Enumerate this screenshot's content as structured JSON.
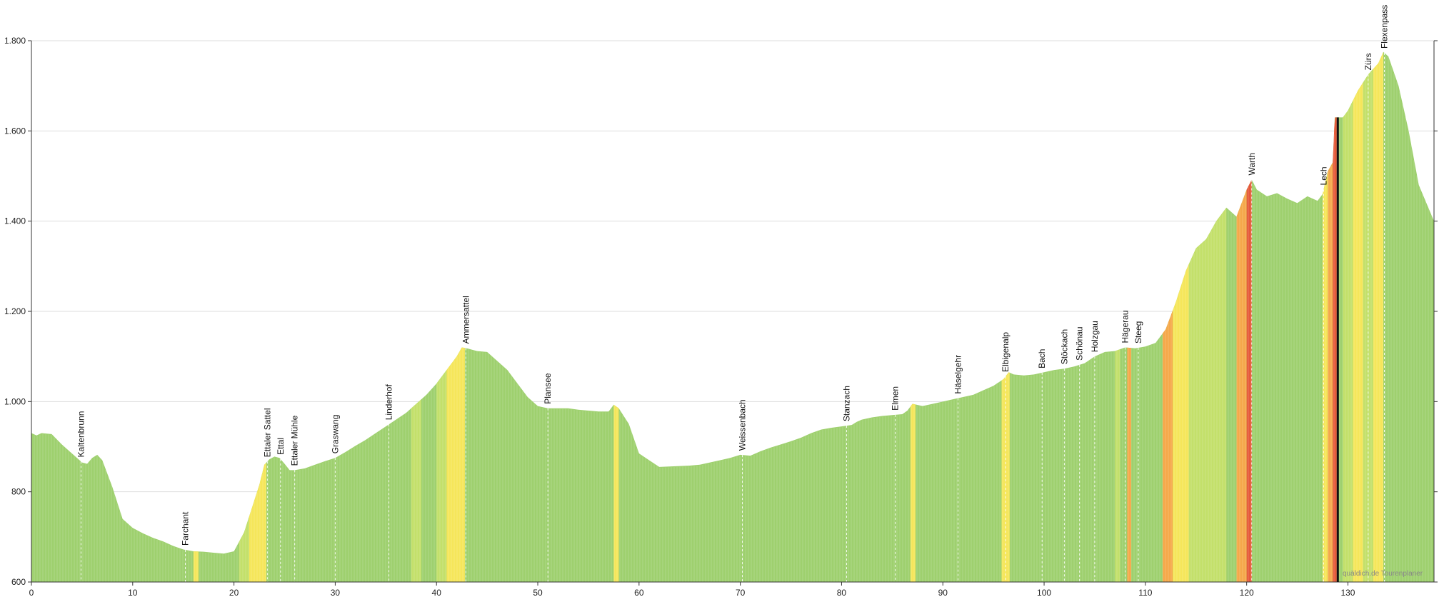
{
  "colors": {
    "flat": "#9ed06e",
    "light": "#c3e06a",
    "yellow": "#f5e65a",
    "orange": "#f5a84a",
    "red": "#e55a3a",
    "grid": "#dddddd",
    "axis": "#333333",
    "marker": "#111111"
  },
  "watermark": "quäldich.de Tourenplaner",
  "chart_data": {
    "type": "area",
    "title": "",
    "xlabel": "",
    "ylabel": "",
    "xlim": [
      0,
      138.5
    ],
    "ylim": [
      600,
      1800
    ],
    "x_ticks": [
      0,
      10,
      20,
      30,
      40,
      50,
      60,
      70,
      80,
      90,
      100,
      110,
      120,
      130
    ],
    "x_tick_labels": [
      "0",
      "10",
      "20",
      "30",
      "40",
      "50",
      "60",
      "70",
      "80",
      "90",
      "100",
      "110",
      "120",
      "130"
    ],
    "y_ticks": [
      600,
      800,
      1000,
      1200,
      1400,
      1600,
      1800
    ],
    "y_tick_labels": [
      "600",
      "800",
      "1.000",
      "1.200",
      "1.400",
      "1.600",
      "1.800"
    ],
    "grid": true,
    "profile": {
      "x": [
        0,
        0.5,
        1,
        2,
        3,
        4,
        5,
        5.5,
        6,
        6.5,
        7,
        8,
        9,
        10,
        11,
        12,
        13,
        14,
        15,
        16,
        17,
        18,
        19,
        20,
        21,
        22,
        22.5,
        23,
        23.5,
        24,
        24.5,
        25,
        25.5,
        26,
        27,
        28,
        29,
        30,
        31,
        32,
        33,
        34,
        35,
        36,
        37,
        38,
        39,
        40,
        41,
        42,
        42.5,
        43,
        44,
        45,
        46,
        47,
        48,
        49,
        50,
        51,
        52,
        53,
        54,
        55,
        56,
        57,
        57.5,
        58,
        59,
        60,
        61,
        62,
        63,
        64,
        65,
        66,
        67,
        68,
        69,
        70,
        71,
        72,
        73,
        74,
        75,
        76,
        77,
        78,
        79,
        80,
        81,
        81.5,
        82,
        83,
        84,
        85,
        86,
        86.5,
        87,
        88,
        89,
        90,
        91,
        92,
        93,
        94,
        95,
        96,
        96.5,
        97,
        98,
        99,
        100,
        101,
        102,
        103,
        104,
        105,
        106,
        107,
        108,
        109,
        110,
        111,
        112,
        113,
        114,
        115,
        116,
        117,
        118,
        119,
        120,
        120.5,
        121,
        122,
        123,
        124,
        125,
        126,
        127,
        127.5,
        128,
        128.5,
        128.7,
        129,
        129.5,
        130,
        131,
        132,
        133,
        133.5,
        134,
        135,
        136,
        137,
        138.5
      ],
      "y": [
        930,
        925,
        930,
        928,
        905,
        885,
        865,
        862,
        875,
        882,
        870,
        810,
        740,
        720,
        708,
        698,
        690,
        680,
        672,
        668,
        667,
        665,
        663,
        668,
        710,
        780,
        815,
        860,
        872,
        878,
        875,
        862,
        848,
        848,
        852,
        860,
        868,
        875,
        888,
        902,
        915,
        930,
        945,
        960,
        975,
        995,
        1015,
        1040,
        1070,
        1100,
        1120,
        1118,
        1112,
        1110,
        1090,
        1070,
        1040,
        1010,
        990,
        985,
        985,
        985,
        982,
        980,
        978,
        978,
        993,
        985,
        950,
        885,
        870,
        855,
        856,
        857,
        858,
        860,
        865,
        870,
        875,
        882,
        880,
        890,
        898,
        905,
        912,
        920,
        930,
        938,
        942,
        945,
        948,
        955,
        960,
        965,
        968,
        970,
        972,
        980,
        995,
        990,
        995,
        1000,
        1005,
        1010,
        1015,
        1025,
        1035,
        1050,
        1065,
        1060,
        1058,
        1060,
        1065,
        1070,
        1073,
        1078,
        1085,
        1100,
        1110,
        1112,
        1120,
        1118,
        1122,
        1130,
        1160,
        1220,
        1290,
        1340,
        1360,
        1400,
        1430,
        1410,
        1470,
        1492,
        1470,
        1455,
        1462,
        1450,
        1440,
        1455,
        1445,
        1460,
        1510,
        1530,
        1630,
        1630,
        1630,
        1645,
        1690,
        1725,
        1750,
        1775,
        1765,
        1700,
        1600,
        1480,
        1400
      ]
    },
    "steepness_segments": [
      {
        "from": 16.0,
        "to": 16.5,
        "level": "yellow"
      },
      {
        "from": 20.5,
        "to": 21.5,
        "level": "light"
      },
      {
        "from": 21.5,
        "to": 23.2,
        "level": "yellow"
      },
      {
        "from": 37.5,
        "to": 38.5,
        "level": "light"
      },
      {
        "from": 40.0,
        "to": 41.0,
        "level": "light"
      },
      {
        "from": 41.0,
        "to": 42.8,
        "level": "yellow"
      },
      {
        "from": 57.5,
        "to": 58.0,
        "level": "yellow"
      },
      {
        "from": 86.8,
        "to": 87.3,
        "level": "yellow"
      },
      {
        "from": 95.8,
        "to": 96.6,
        "level": "yellow"
      },
      {
        "from": 107.0,
        "to": 107.5,
        "level": "light"
      },
      {
        "from": 108.2,
        "to": 108.6,
        "level": "orange"
      },
      {
        "from": 111.7,
        "to": 112.7,
        "level": "orange"
      },
      {
        "from": 112.7,
        "to": 114.3,
        "level": "yellow"
      },
      {
        "from": 114.3,
        "to": 116.0,
        "level": "light"
      },
      {
        "from": 116.0,
        "to": 118.0,
        "level": "light"
      },
      {
        "from": 119.0,
        "to": 120.0,
        "level": "orange"
      },
      {
        "from": 120.0,
        "to": 120.5,
        "level": "red"
      },
      {
        "from": 127.5,
        "to": 128.0,
        "level": "yellow"
      },
      {
        "from": 128.0,
        "to": 128.5,
        "level": "orange"
      },
      {
        "from": 128.5,
        "to": 128.9,
        "level": "red"
      },
      {
        "from": 129.5,
        "to": 130.5,
        "level": "light"
      },
      {
        "from": 130.5,
        "to": 131.5,
        "level": "yellow"
      },
      {
        "from": 131.5,
        "to": 132.5,
        "level": "light"
      },
      {
        "from": 132.5,
        "to": 133.5,
        "level": "yellow"
      }
    ],
    "places": [
      {
        "name": "Kaltenbrunn",
        "x": 4.9
      },
      {
        "name": "Farchant",
        "x": 15.2
      },
      {
        "name": "Ettaler Sattel",
        "x": 23.3
      },
      {
        "name": "Ettal",
        "x": 24.6
      },
      {
        "name": "Ettaler Mühle",
        "x": 26.0
      },
      {
        "name": "Graswang",
        "x": 30.0
      },
      {
        "name": "Linderhof",
        "x": 35.3
      },
      {
        "name": "Ammersattel",
        "x": 42.9
      },
      {
        "name": "Plansee",
        "x": 51.0
      },
      {
        "name": "Weissenbach",
        "x": 70.2
      },
      {
        "name": "Stanzach",
        "x": 80.5
      },
      {
        "name": "Elmen",
        "x": 85.3
      },
      {
        "name": "Häselgehr",
        "x": 91.5
      },
      {
        "name": "Elbigenalp",
        "x": 96.2
      },
      {
        "name": "Bach",
        "x": 99.8
      },
      {
        "name": "Stöckach",
        "x": 102.0
      },
      {
        "name": "Schönau",
        "x": 103.5
      },
      {
        "name": "Holzgau",
        "x": 105.0
      },
      {
        "name": "Hägerau",
        "x": 108.0
      },
      {
        "name": "Steeg",
        "x": 109.3
      },
      {
        "name": "Warth",
        "x": 120.5
      },
      {
        "name": "Lech",
        "x": 127.6
      },
      {
        "name": "Zürs",
        "x": 132.0
      },
      {
        "name": "Flexenpass",
        "x": 133.6
      }
    ],
    "current_position_x": 129.0
  }
}
